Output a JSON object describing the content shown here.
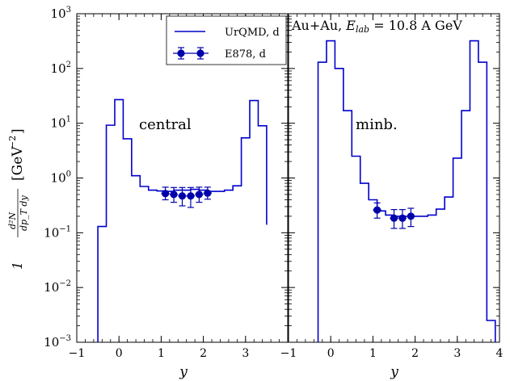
{
  "chart_data": [
    {
      "type": "line",
      "panel": "left",
      "annotation": "central",
      "xlabel": "y",
      "ylabel": "1/(2π p_T) d²N/(dp_T dy) [GeV⁻²]",
      "ylabel_parts": {
        "frac_num": "d²N",
        "frac_den": "dp_T dy",
        "unit": "[GeV",
        "exp": "−2",
        "close": "]"
      },
      "xlim": [
        -1,
        4
      ],
      "ylim": [
        0.001,
        1000
      ],
      "yscale": "log",
      "x_ticks": [
        "−1",
        "0",
        "1",
        "2",
        "3"
      ],
      "x_tick_values": [
        -1,
        0,
        1,
        2,
        3
      ],
      "y_tick_values": [
        0.001,
        0.01,
        0.1,
        1,
        10,
        100,
        1000
      ],
      "y_tick_exponents": [
        "−3",
        "−2",
        "−1",
        "0",
        "1",
        "2",
        "3"
      ],
      "y_tick_base": "10",
      "legend": {
        "placement": "top-right",
        "entries": [
          {
            "label": "UrQMD, d",
            "kind": "line"
          },
          {
            "label": "E878, d",
            "kind": "errorbar"
          }
        ]
      },
      "series": [
        {
          "name": "UrQMD, d",
          "kind": "step",
          "color": "#0000cc",
          "edges": [
            -0.5,
            -0.3,
            -0.1,
            0.1,
            0.3,
            0.5,
            0.7,
            0.9,
            1.1,
            1.3,
            1.5,
            1.7,
            1.9,
            2.1,
            2.3,
            2.5,
            2.7,
            2.9,
            3.1,
            3.3,
            3.5
          ],
          "values": [
            0.13,
            9.2,
            27,
            5.2,
            1.1,
            0.7,
            0.6,
            0.58,
            0.57,
            0.6,
            0.6,
            0.62,
            0.6,
            0.57,
            0.57,
            0.6,
            0.72,
            5.4,
            26,
            9,
            0.14
          ]
        },
        {
          "name": "E878, d",
          "kind": "errorbar",
          "color": "#0000aa",
          "points": [
            {
              "x": 1.1,
              "y": 0.52,
              "yerr_lo": 0.12,
              "yerr_hi": 0.16,
              "xerr": 0.1
            },
            {
              "x": 1.3,
              "y": 0.5,
              "yerr_lo": 0.14,
              "yerr_hi": 0.17,
              "xerr": 0.1
            },
            {
              "x": 1.5,
              "y": 0.47,
              "yerr_lo": 0.16,
              "yerr_hi": 0.2,
              "xerr": 0.1
            },
            {
              "x": 1.7,
              "y": 0.47,
              "yerr_lo": 0.18,
              "yerr_hi": 0.2,
              "xerr": 0.1
            },
            {
              "x": 1.9,
              "y": 0.5,
              "yerr_lo": 0.14,
              "yerr_hi": 0.18,
              "xerr": 0.1
            },
            {
              "x": 2.1,
              "y": 0.53,
              "yerr_lo": 0.12,
              "yerr_hi": 0.15,
              "xerr": 0.1
            }
          ]
        }
      ]
    },
    {
      "type": "line",
      "panel": "right",
      "annotation": "minb.",
      "title": "Au+Au, E_lab = 10.8 A GeV",
      "title_parts": {
        "pre": "Au+Au, ",
        "var": "E",
        "sub": "lab",
        "post": " = 10.8 A GeV"
      },
      "xlabel": "y",
      "xlim": [
        -1,
        4
      ],
      "ylim": [
        0.001,
        1000
      ],
      "yscale": "log",
      "x_ticks": [
        "−1",
        "0",
        "1",
        "2",
        "3",
        "4"
      ],
      "x_tick_values": [
        -1,
        0,
        1,
        2,
        3,
        4
      ],
      "series": [
        {
          "name": "UrQMD, d",
          "kind": "step",
          "color": "#0000cc",
          "edges": [
            -0.5,
            -0.3,
            -0.1,
            0.1,
            0.3,
            0.5,
            0.7,
            0.9,
            1.1,
            1.3,
            1.5,
            1.7,
            1.9,
            2.1,
            2.3,
            2.5,
            2.7,
            2.9,
            3.1,
            3.3,
            3.5,
            3.7,
            3.9
          ],
          "values": [
            0.0005,
            130,
            320,
            100,
            17,
            2.5,
            0.8,
            0.4,
            0.25,
            0.21,
            0.2,
            0.2,
            0.2,
            0.2,
            0.21,
            0.27,
            0.45,
            2.3,
            17,
            320,
            130,
            0.0025
          ]
        },
        {
          "name": "E878, d",
          "kind": "errorbar",
          "color": "#0000aa",
          "points": [
            {
              "x": 1.1,
              "y": 0.26,
              "yerr_lo": 0.075,
              "yerr_hi": 0.09,
              "xerr": 0.1
            },
            {
              "x": 1.5,
              "y": 0.185,
              "yerr_lo": 0.065,
              "yerr_hi": 0.08,
              "xerr": 0.1
            },
            {
              "x": 1.7,
              "y": 0.185,
              "yerr_lo": 0.065,
              "yerr_hi": 0.08,
              "xerr": 0.1
            },
            {
              "x": 1.9,
              "y": 0.2,
              "yerr_lo": 0.07,
              "yerr_hi": 0.08,
              "xerr": 0.1
            }
          ]
        }
      ]
    }
  ]
}
